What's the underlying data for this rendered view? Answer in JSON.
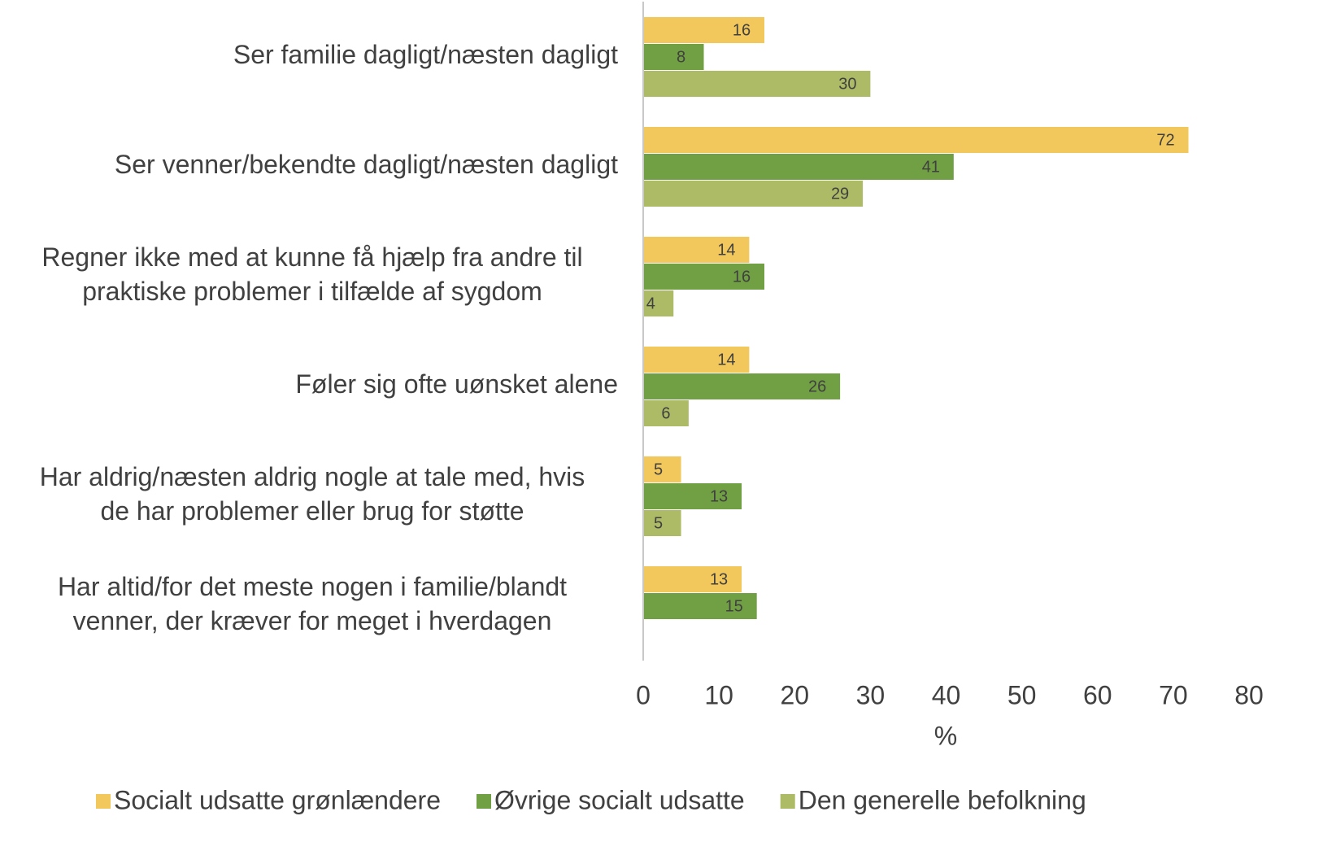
{
  "chart_data": {
    "type": "bar",
    "orientation": "horizontal",
    "categories": [
      "Ser familie dagligt/næsten dagligt",
      "Ser venner/bekendte dagligt/næsten dagligt",
      "Regner ikke med at kunne få hjælp fra andre til\npraktiske problemer i tilfælde af sygdom",
      "Føler sig ofte uønsket alene",
      "Har aldrig/næsten aldrig nogle at tale med, hvis\nde har problemer eller brug for støtte",
      "Har altid/for det meste nogen i familie/blandt\nvenner, der kræver for meget i hverdagen"
    ],
    "series": [
      {
        "name": "Socialt udsatte grønlændere",
        "color": "#f2c75c",
        "values": [
          16,
          72,
          14,
          14,
          5,
          13
        ]
      },
      {
        "name": "Øvrige socialt udsatte",
        "color": "#70a043",
        "values": [
          8,
          41,
          16,
          26,
          13,
          15
        ]
      },
      {
        "name": "Den generelle befolkning",
        "color": "#adbb66",
        "values": [
          30,
          29,
          4,
          6,
          5,
          null
        ]
      }
    ],
    "xlabel": "%",
    "xlim": [
      0,
      80
    ],
    "xticks": [
      0,
      10,
      20,
      30,
      40,
      50,
      60,
      70,
      80
    ],
    "legend": "bottom"
  }
}
